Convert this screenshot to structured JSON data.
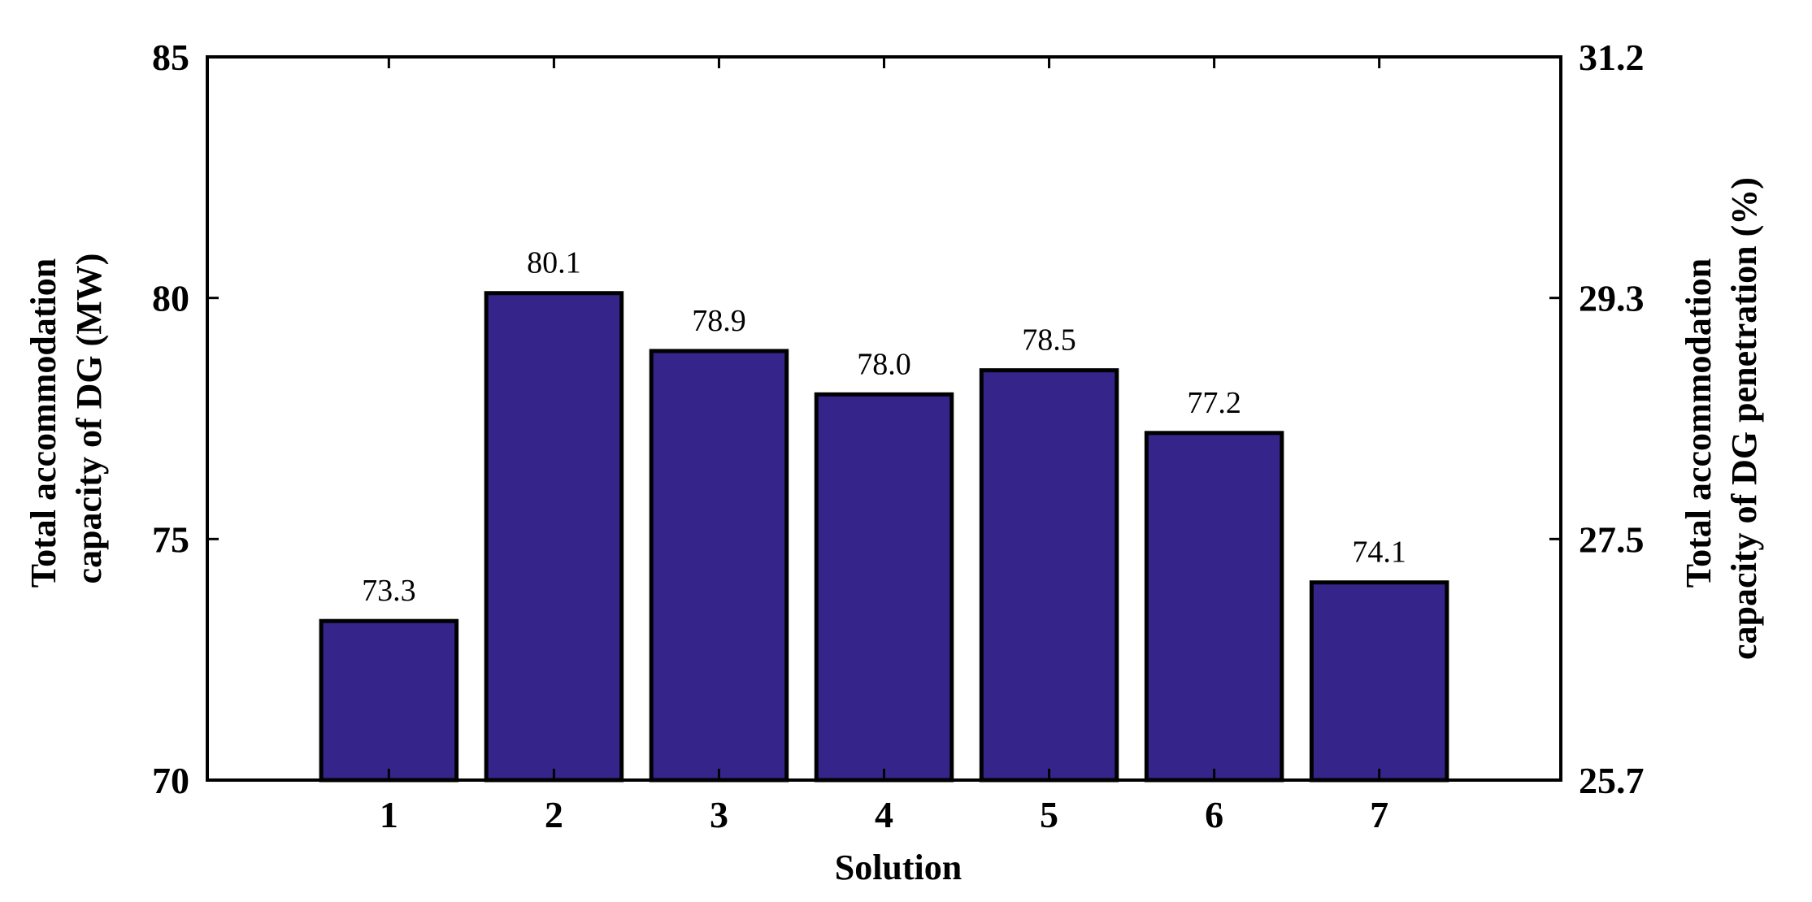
{
  "chart_data": {
    "type": "bar",
    "categories": [
      "1",
      "2",
      "3",
      "4",
      "5",
      "6",
      "7"
    ],
    "values": [
      73.3,
      80.1,
      78.9,
      78.0,
      78.5,
      77.2,
      74.1
    ],
    "data_labels": [
      "73.3",
      "80.1",
      "78.9",
      "78.0",
      "78.5",
      "77.2",
      "74.1"
    ],
    "xlabel": "Solution",
    "ylabel_left": [
      "Total accommodation",
      "capacity of DG (MW)"
    ],
    "ylabel_right": [
      "Total accommodation",
      "capacity of DG penetration (%)"
    ],
    "ylim": [
      70,
      85
    ],
    "yticks_left": [
      "70",
      "75",
      "80",
      "85"
    ],
    "ylim_right": [
      25.7,
      31.2
    ],
    "yticks_right": [
      "25.7",
      "27.5",
      "29.3",
      "31.2"
    ],
    "bar_color": "#35248a",
    "edge_color": "#000000",
    "grid": false
  }
}
